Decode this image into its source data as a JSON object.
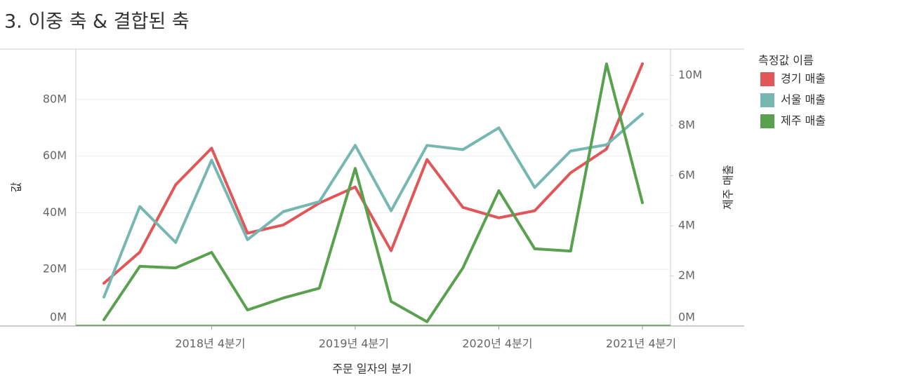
{
  "chart_data": {
    "type": "line",
    "title": "3. 이중 축 & 결합된 축",
    "x_label": "주문 일자의 분기",
    "y_label": "값",
    "y2_label": "제주 매출",
    "legend_title": "측정값 이름",
    "categories": [
      null,
      null,
      null,
      "2018년 4분기",
      null,
      null,
      null,
      "2019년 4분기",
      null,
      null,
      null,
      "2020년 4분기",
      null,
      null,
      null,
      "2021년 4분기"
    ],
    "series": [
      {
        "name": "경기 매출",
        "color": "#e15759",
        "values": [
          15.1,
          26.1,
          49.9,
          62.8,
          32.8,
          35.7,
          43.4,
          49.1,
          26.6,
          58.8,
          41.9,
          38.2,
          40.7,
          54.1,
          62.5,
          92.6
        ]
      },
      {
        "name": "서울 매출",
        "color": "#76b7b2",
        "values": [
          10.2,
          42.2,
          29.5,
          58.6,
          30.5,
          40.4,
          43.9,
          63.8,
          40.7,
          63.8,
          62.3,
          70.0,
          48.9,
          61.8,
          64.0,
          74.9
        ]
      },
      {
        "name": "제주 매출",
        "color": "#59a14f",
        "axis": "y2",
        "values": [
          0.25,
          2.38,
          2.32,
          2.94,
          0.64,
          1.12,
          1.51,
          6.29,
          0.98,
          0.17,
          2.32,
          5.4,
          3.08,
          2.99,
          10.46,
          4.92
        ]
      }
    ],
    "ylim": [
      0,
      97.8
    ],
    "yticks": [
      {
        "value": 0,
        "label": "0M"
      },
      {
        "value": 20,
        "label": "20M"
      },
      {
        "value": 40,
        "label": "40M"
      },
      {
        "value": 60,
        "label": "60M"
      },
      {
        "value": 80,
        "label": "80M"
      }
    ],
    "y2lim": [
      0,
      11.05
    ],
    "y2ticks": [
      {
        "value": 0,
        "label": "0M"
      },
      {
        "value": 2,
        "label": "2M"
      },
      {
        "value": 4,
        "label": "4M"
      },
      {
        "value": 6,
        "label": "6M"
      },
      {
        "value": 8,
        "label": "8M"
      },
      {
        "value": 10,
        "label": "10M"
      }
    ],
    "grid": true,
    "legend": "right"
  }
}
